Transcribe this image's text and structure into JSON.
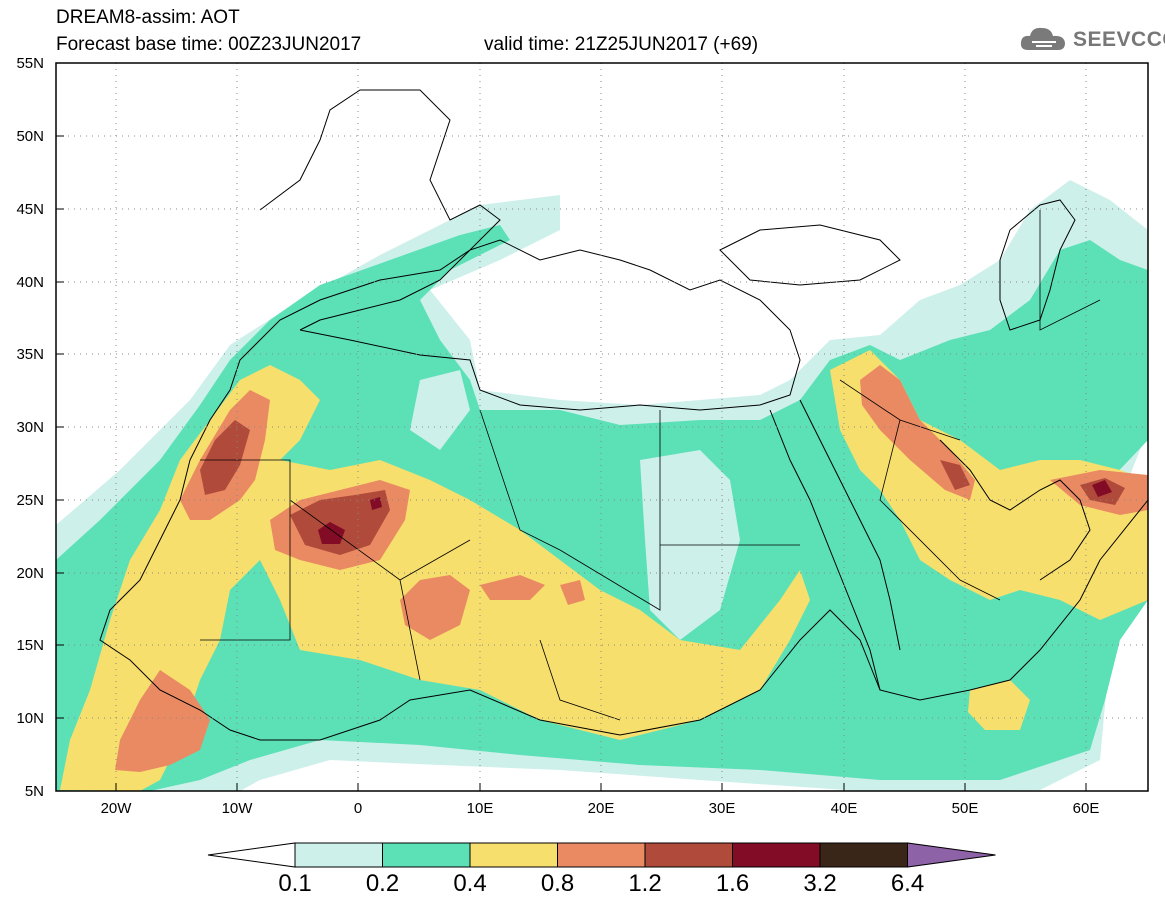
{
  "header": {
    "title": "DREAM8-assim: AOT",
    "base_time": "Forecast base time: 00Z23JUN2017",
    "valid_time": "valid time: 21Z25JUN2017 (+69)",
    "brand": "SEEVCCC"
  },
  "map": {
    "type": "contour-map",
    "variable": "AOT",
    "lat_range": [
      5,
      55
    ],
    "lon_range": [
      -25,
      65
    ],
    "lat_labels": [
      "55N",
      "50N",
      "45N",
      "40N",
      "35N",
      "30N",
      "25N",
      "20N",
      "15N",
      "10N",
      "5N"
    ],
    "lon_labels": [
      "20W",
      "10W",
      "0",
      "10E",
      "20E",
      "30E",
      "40E",
      "50E",
      "60E"
    ],
    "gridlines": true,
    "grid_style": "dotted"
  },
  "legend": {
    "levels": [
      "0.1",
      "0.2",
      "0.4",
      "0.8",
      "1.2",
      "1.6",
      "3.2",
      "6.4"
    ],
    "colors": [
      "#cdf0ea",
      "#5ce0b6",
      "#f7df6d",
      "#e98a62",
      "#b04a3a",
      "#820b26",
      "#3a2618",
      "#8e62a6"
    ],
    "under_color": "#ffffff"
  }
}
